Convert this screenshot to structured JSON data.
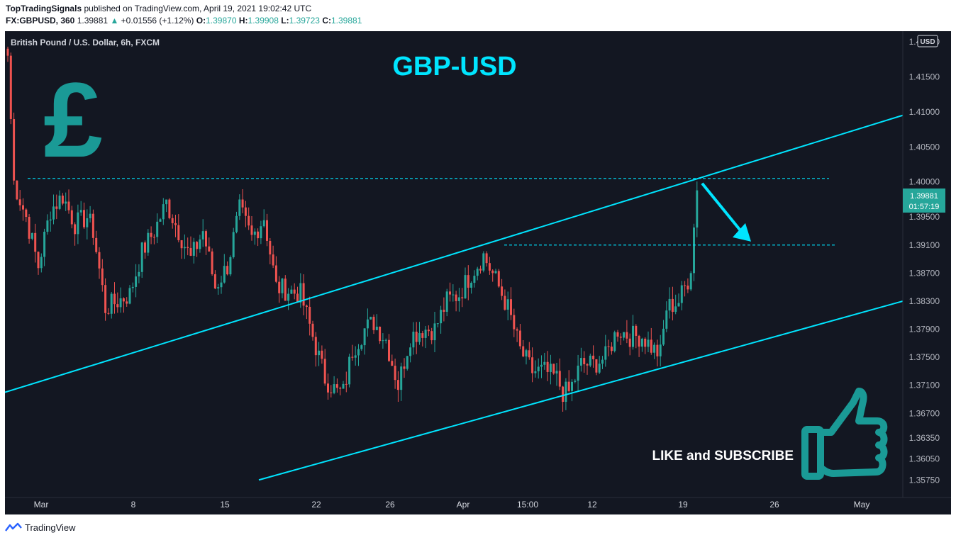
{
  "header": {
    "author": "TopTradingSignals",
    "published": "published on TradingView.com, April 19, 2021 19:02:42 UTC",
    "symbol": "FX:GBPUSD, 360",
    "last": "1.39881",
    "change": "+0.01556 (+1.12%)",
    "o_label": "O:",
    "o": "1.39870",
    "h_label": "H:",
    "h": "1.39908",
    "l_label": "L:",
    "l": "1.39723",
    "c_label": "C:",
    "c": "1.39881"
  },
  "chart": {
    "instrument": "British Pound / U.S. Dollar, 6h, FXCM",
    "headline": "GBP-USD",
    "currency_badge": "USD",
    "price_tag": "1.39881",
    "countdown": "01:57:19",
    "cta": "LIKE and SUBSCRIBE",
    "pound_glyph": "£",
    "icons": [
      "pound-sign-icon",
      "thumbs-up-icon",
      "down-arrow-icon"
    ],
    "colors": {
      "background": "#131722",
      "up": "#26a69a",
      "down": "#ef5350",
      "annotation": "#00e5ff",
      "logo": "#1a9a96"
    }
  },
  "footer": {
    "brand": "TradingView"
  },
  "chart_data": {
    "type": "candlestick",
    "title": "British Pound / U.S. Dollar, 6h, FXCM",
    "y_ticks": [
      "1.42000",
      "1.41500",
      "1.41000",
      "1.40500",
      "1.40000",
      "1.39500",
      "1.39100",
      "1.38700",
      "1.38300",
      "1.37900",
      "1.37500",
      "1.37100",
      "1.36700",
      "1.36350",
      "1.36050",
      "1.35750"
    ],
    "x_ticks": [
      "Mar",
      "8",
      "15",
      "22",
      "26",
      "Apr",
      "15:00",
      "12",
      "19",
      "26",
      "May"
    ],
    "ylim": [
      1.355,
      1.4215
    ],
    "anchor_closes": [
      [
        0,
        1.418
      ],
      [
        2,
        1.4
      ],
      [
        6,
        1.395
      ],
      [
        10,
        1.388
      ],
      [
        14,
        1.396
      ],
      [
        18,
        1.398
      ],
      [
        22,
        1.394
      ],
      [
        26,
        1.395
      ],
      [
        28,
        1.393
      ],
      [
        32,
        1.382
      ],
      [
        36,
        1.383
      ],
      [
        40,
        1.384
      ],
      [
        44,
        1.39
      ],
      [
        48,
        1.393
      ],
      [
        52,
        1.397
      ],
      [
        56,
        1.393
      ],
      [
        60,
        1.389
      ],
      [
        64,
        1.393
      ],
      [
        68,
        1.385
      ],
      [
        72,
        1.388
      ],
      [
        76,
        1.396
      ],
      [
        80,
        1.392
      ],
      [
        84,
        1.395
      ],
      [
        88,
        1.385
      ],
      [
        92,
        1.3845
      ],
      [
        96,
        1.384
      ],
      [
        100,
        1.378
      ],
      [
        104,
        1.372
      ],
      [
        108,
        1.37
      ],
      [
        110,
        1.37
      ],
      [
        113,
        1.376
      ],
      [
        117,
        1.379
      ],
      [
        120,
        1.38
      ],
      [
        124,
        1.3775
      ],
      [
        128,
        1.371
      ],
      [
        132,
        1.378
      ],
      [
        136,
        1.379
      ],
      [
        140,
        1.379
      ],
      [
        144,
        1.383
      ],
      [
        148,
        1.384
      ],
      [
        152,
        1.387
      ],
      [
        156,
        1.3895
      ],
      [
        160,
        1.386
      ],
      [
        164,
        1.382
      ],
      [
        168,
        1.376
      ],
      [
        172,
        1.373
      ],
      [
        176,
        1.373
      ],
      [
        180,
        1.372
      ],
      [
        182,
        1.37
      ],
      [
        184,
        1.37
      ],
      [
        188,
        1.374
      ],
      [
        192,
        1.374
      ],
      [
        196,
        1.375
      ],
      [
        200,
        1.379
      ],
      [
        204,
        1.378
      ],
      [
        208,
        1.378
      ],
      [
        212,
        1.376
      ],
      [
        214,
        1.3755
      ],
      [
        216,
        1.382
      ],
      [
        220,
        1.383
      ],
      [
        224,
        1.387
      ],
      [
        225,
        1.3935
      ],
      [
        226,
        1.3988
      ]
    ],
    "annotations": {
      "resistance_level": 1.4005,
      "target_level": 1.391,
      "upper_channel": [
        [
          0,
          1.37
        ],
        [
          1266,
          1.4095
        ]
      ],
      "lower_channel": [
        [
          358,
          1.3575
        ],
        [
          1266,
          1.383
        ]
      ],
      "arrow": {
        "from_price": 1.3998,
        "to_price": 1.3915
      }
    }
  }
}
